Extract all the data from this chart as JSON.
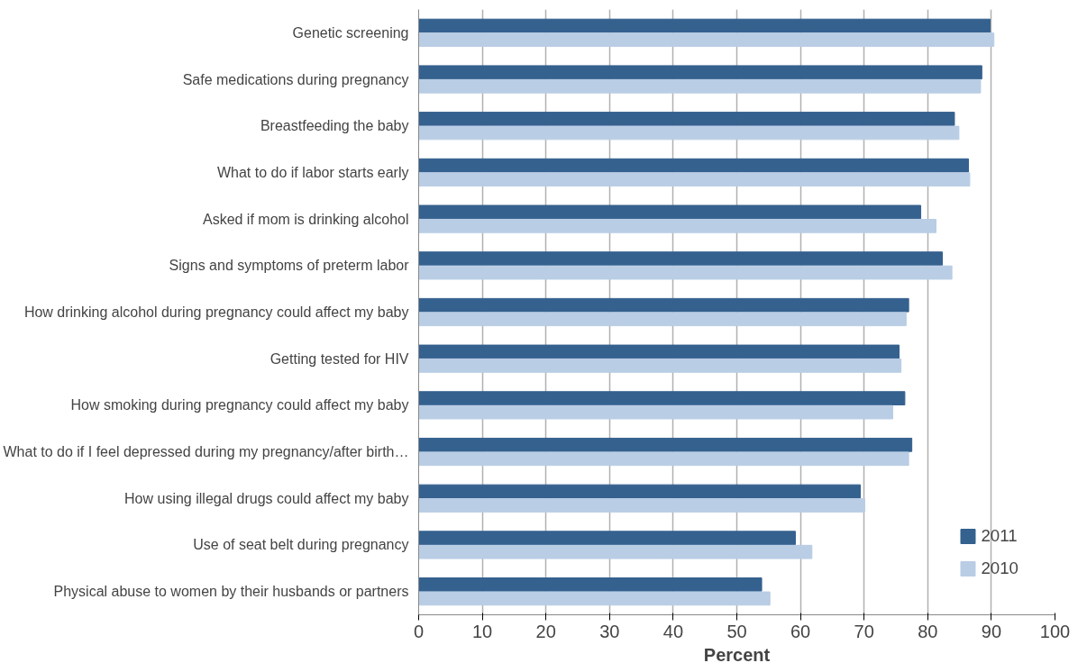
{
  "chart_data": {
    "type": "bar",
    "orientation": "horizontal",
    "xlabel": "Percent",
    "categories": [
      "Genetic screening",
      "Safe medications during pregnancy",
      "Breastfeeding the baby",
      "What to do if labor starts early",
      "Asked if mom is drinking alcohol",
      "Signs and symptoms of preterm labor",
      "How drinking alcohol during pregnancy could affect my baby",
      "Getting tested for HIV",
      "How smoking during pregnancy could affect my baby",
      "What to do if I feel depressed during my pregnancy/after birth…",
      "How using illegal drugs could affect my baby",
      "Use of seat belt during pregnancy",
      "Physical abuse to women by their husbands or partners"
    ],
    "series": [
      {
        "name": "2011",
        "color": "#35618f",
        "values": [
          89.8,
          88.5,
          84.2,
          86.4,
          78.9,
          82.3,
          77.0,
          75.5,
          76.4,
          77.5,
          69.4,
          59.2,
          53.9
        ]
      },
      {
        "name": "2010",
        "color": "#b9cde5",
        "values": [
          90.4,
          88.3,
          84.9,
          86.6,
          81.3,
          83.8,
          76.6,
          75.8,
          74.5,
          77.0,
          70.1,
          61.8,
          55.2
        ]
      }
    ],
    "xlim": [
      0,
      100
    ],
    "xticks": [
      0,
      10,
      20,
      30,
      40,
      50,
      60,
      70,
      80,
      90,
      100
    ],
    "grid": "x",
    "legend": "bottom right"
  }
}
